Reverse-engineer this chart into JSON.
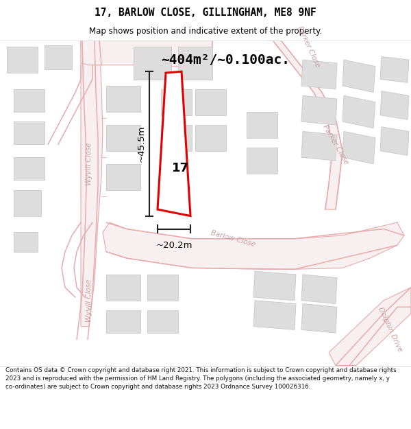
{
  "title": "17, BARLOW CLOSE, GILLINGHAM, ME8 9NF",
  "subtitle": "Map shows position and indicative extent of the property.",
  "area_label": "~404m²/~0.100ac.",
  "height_label": "~45.5m",
  "width_label": "~20.2m",
  "number_label": "17",
  "footer": "Contains OS data © Crown copyright and database right 2021. This information is subject to Crown copyright and database rights 2023 and is reproduced with the permission of HM Land Registry. The polygons (including the associated geometry, namely x, y co-ordinates) are subject to Crown copyright and database rights 2023 Ordnance Survey 100026316.",
  "map_bg": "#ffffff",
  "plot_color": "#e00000",
  "building_color": "#dddddd",
  "building_edge": "#c8c8c8",
  "road_line_color": "#e8aaaa",
  "street_label_color": "#c8a0a0",
  "text_color": "#000000",
  "title_bg": "#ffffff",
  "footer_bg": "#ffffff",
  "dim_color": "#222222",
  "wyvill_label_color": "#b0b0b0",
  "parker_label_color": "#b0b0b0"
}
